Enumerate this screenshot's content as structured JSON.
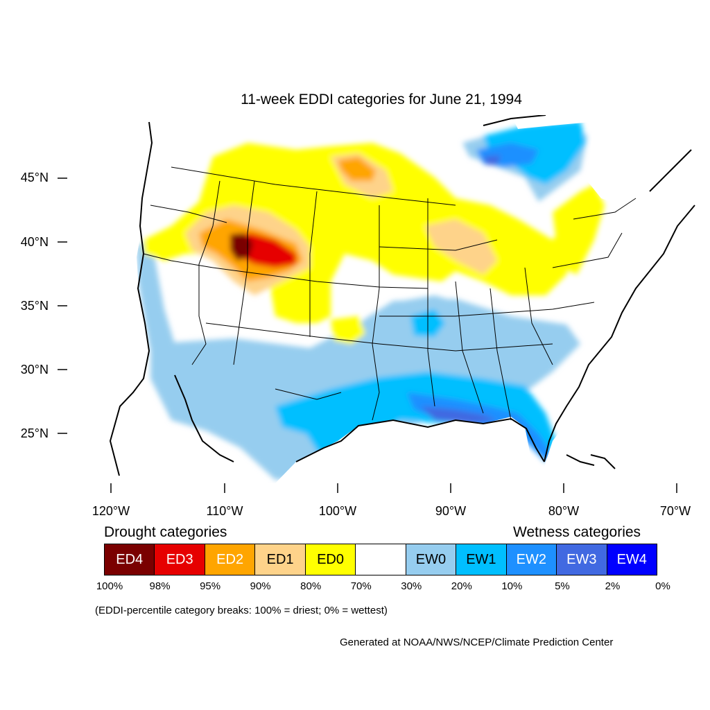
{
  "map": {
    "title": "11-week EDDI categories for June 21, 1994",
    "lat_labels": [
      "45°N",
      "40°N",
      "35°N",
      "30°N",
      "25°N"
    ],
    "lon_labels": [
      "120°W",
      "110°W",
      "100°W",
      "90°W",
      "80°W",
      "70°W"
    ],
    "extent": {
      "lon_min": -124,
      "lon_max": -68.5,
      "lat_min": 21,
      "lat_max": 49.5
    }
  },
  "legend": {
    "drought_heading": "Drought categories",
    "wetness_heading": "Wetness categories",
    "categories": [
      {
        "label": "ED4",
        "color": "#7a0000",
        "text_color": "#ffffff"
      },
      {
        "label": "ED3",
        "color": "#e60000",
        "text_color": "#ffffff"
      },
      {
        "label": "ED2",
        "color": "#ffa500",
        "text_color": "#ffffff"
      },
      {
        "label": "ED1",
        "color": "#fed38a",
        "text_color": "#000000"
      },
      {
        "label": "ED0",
        "color": "#ffff00",
        "text_color": "#000000"
      },
      {
        "label": "",
        "color": "#ffffff",
        "text_color": "#000000"
      },
      {
        "label": "EW0",
        "color": "#96cdef",
        "text_color": "#000000"
      },
      {
        "label": "EW1",
        "color": "#00bfff",
        "text_color": "#000000"
      },
      {
        "label": "EW2",
        "color": "#1e90ff",
        "text_color": "#ffffff"
      },
      {
        "label": "EW3",
        "color": "#4169e1",
        "text_color": "#ffffff"
      },
      {
        "label": "EW4",
        "color": "#0000ff",
        "text_color": "#ffffff"
      }
    ],
    "breaks": [
      "100%",
      "98%",
      "95%",
      "90%",
      "80%",
      "70%",
      "30%",
      "20%",
      "10%",
      "5%",
      "2%",
      "0%"
    ],
    "note": "(EDDI-percentile category breaks: 100% = driest; 0% = wettest)"
  },
  "credit": "Generated at NOAA/NWS/NCEP/Climate Prediction Center"
}
